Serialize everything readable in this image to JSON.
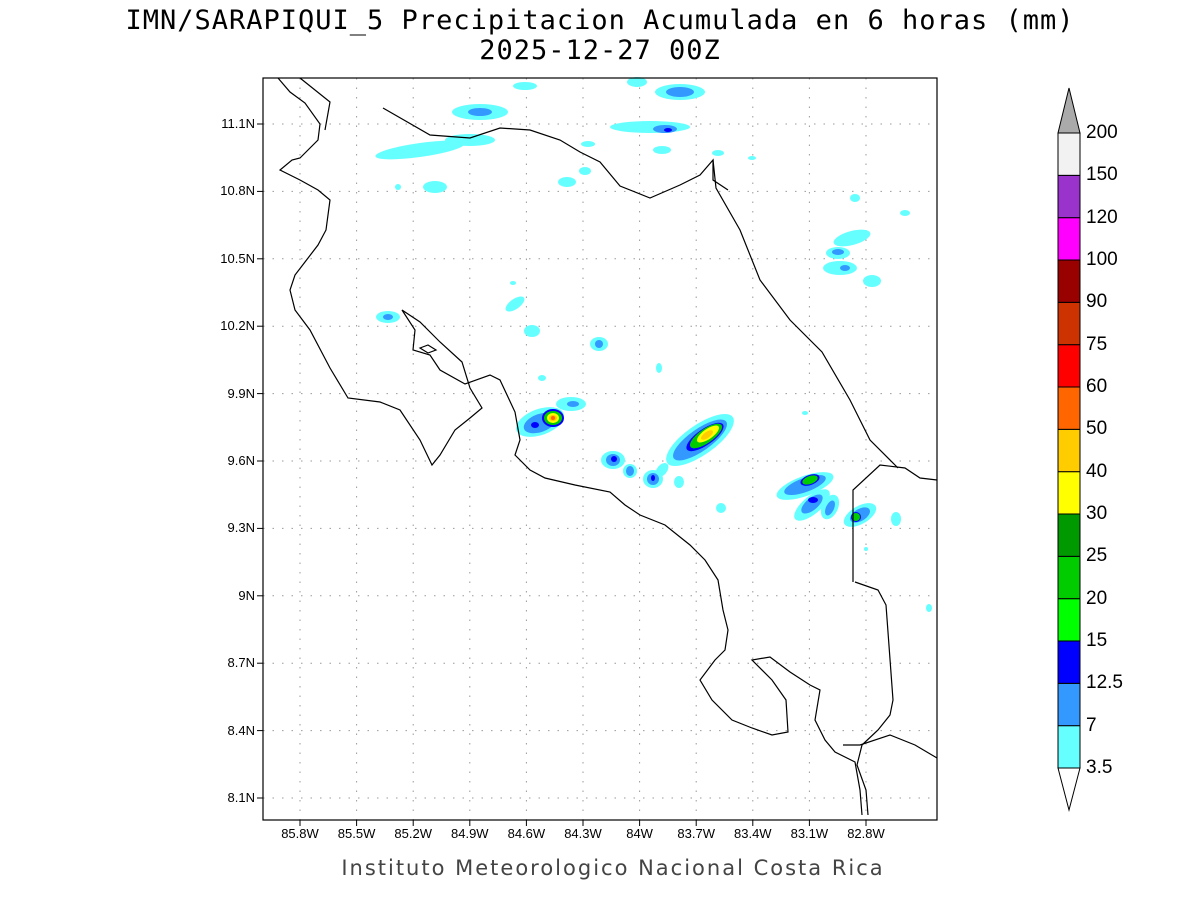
{
  "title": {
    "line1": "IMN/SARAPIQUI_5 Precipitacion Acumulada en 6 horas (mm)",
    "line2": "2025-12-27 00Z"
  },
  "axes": {
    "lat_labels": [
      "11.1N",
      "10.8N",
      "10.5N",
      "10.2N",
      "9.9N",
      "9.6N",
      "9.3N",
      "9N",
      "8.7N",
      "8.4N",
      "8.1N"
    ],
    "lon_labels": [
      "85.8W",
      "85.5W",
      "85.2W",
      "84.9W",
      "84.6W",
      "84.3W",
      "84W",
      "83.7W",
      "83.4W",
      "83.1W",
      "82.8W"
    ]
  },
  "colorbar": {
    "labels": [
      "3.5",
      "7",
      "12.5",
      "15",
      "20",
      "25",
      "30",
      "40",
      "50",
      "60",
      "75",
      "90",
      "100",
      "120",
      "150",
      "200"
    ],
    "colors": [
      "#66ffff",
      "#3399ff",
      "#0000ff",
      "#00ff00",
      "#00cc00",
      "#009900",
      "#ffff00",
      "#ffcc00",
      "#ff6600",
      "#ff0000",
      "#cc3300",
      "#990000",
      "#ff00ff",
      "#9933cc",
      "#f2f2f2"
    ],
    "over_color": "#aaaaaa",
    "under_color": "#ffffff"
  },
  "footer": "Instituto Meteorologico Nacional Costa Rica"
}
